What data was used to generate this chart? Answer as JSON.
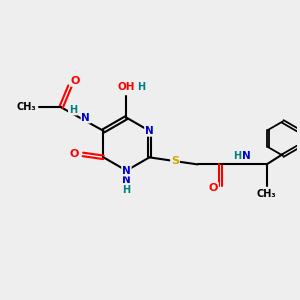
{
  "bg_color": "#eeeeee",
  "atom_color_N": "#0000cc",
  "atom_color_O": "#ff0000",
  "atom_color_S": "#ccaa00",
  "atom_color_H": "#008080",
  "bond_color": "#000000",
  "figsize": [
    3.0,
    3.0
  ],
  "dpi": 100,
  "xlim": [
    0,
    10
  ],
  "ylim": [
    0,
    10
  ]
}
